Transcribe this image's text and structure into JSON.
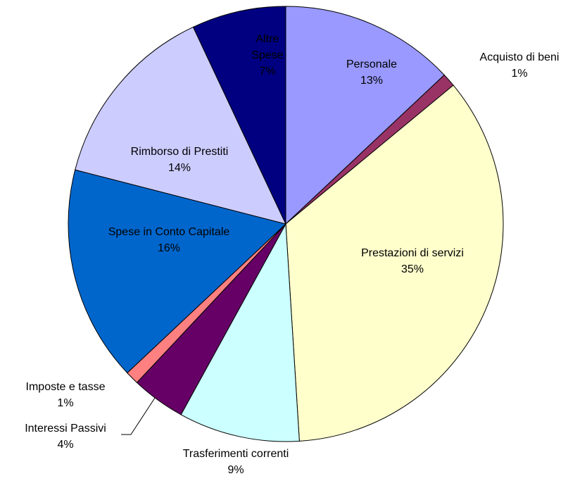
{
  "chart_data": {
    "type": "pie",
    "categories": [
      "Personale",
      "Acquisto di beni",
      "Prestazioni di servizi",
      "Trasferimenti correnti",
      "Interessi Passivi",
      "Imposte e tasse",
      "Spese in Conto Capitale",
      "Rimborso di Prestiti",
      "Altre Spese"
    ],
    "values": [
      13,
      1,
      35,
      9,
      4,
      1,
      16,
      14,
      7
    ],
    "value_labels": [
      "13%",
      "1%",
      "35%",
      "9%",
      "4%",
      "1%",
      "16%",
      "14%",
      "7%"
    ],
    "colors": [
      "#9999ff",
      "#993366",
      "#ffffcc",
      "#ccffff",
      "#660066",
      "#ff8080",
      "#0066cc",
      "#ccccff",
      "#000080"
    ]
  }
}
